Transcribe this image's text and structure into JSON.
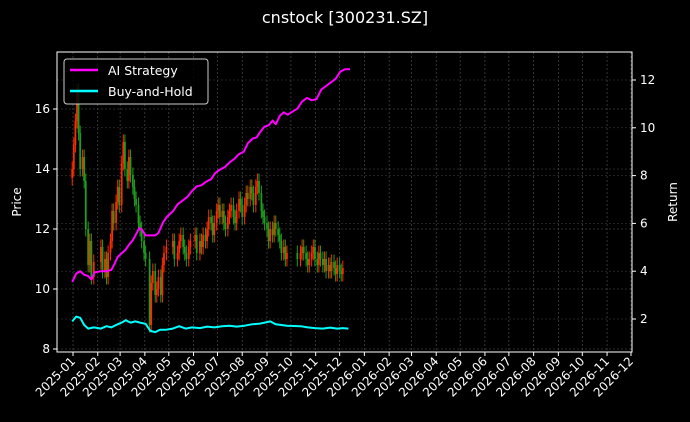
{
  "title": "cnstock [300231.SZ]",
  "chart_data": {
    "type": "line",
    "title": "cnstock [300231.SZ]",
    "xlabel": "",
    "ylabel": "Price",
    "ylabel_right": "Return",
    "grid": true,
    "legend_position": "upper left",
    "background": "#000000",
    "x_tick_labels": [
      "2025-01",
      "2025-02",
      "2025-03",
      "2025-04",
      "2025-05",
      "2025-06",
      "2025-07",
      "2025-08",
      "2025-09",
      "2025-10",
      "2025-11",
      "2025-12",
      "2026-01",
      "2026-02",
      "2026-03",
      "2026-04",
      "2026-05",
      "2026-06",
      "2026-07",
      "2026-08",
      "2026-09",
      "2026-10",
      "2026-11",
      "2026-12"
    ],
    "y_left": {
      "label": "Price",
      "ticks": [
        8,
        10,
        12,
        14,
        16
      ],
      "range": [
        7.9,
        18.0
      ]
    },
    "y_right": {
      "label": "Return",
      "ticks": [
        2,
        4,
        6,
        8,
        10,
        12
      ],
      "range": [
        0.6,
        13.2
      ]
    },
    "price_candles": {
      "name": "Price (candlestick)",
      "up_color": "#ff2a00",
      "down_color": "#1e9e1e",
      "x": [
        "2024-12-31",
        "2025-01-02",
        "2025-01-04",
        "2025-01-06",
        "2025-01-08",
        "2025-01-10",
        "2025-01-13",
        "2025-01-15",
        "2025-01-17",
        "2025-01-20",
        "2025-01-22",
        "2025-01-24",
        "2025-01-27",
        "2025-02-05",
        "2025-02-07",
        "2025-02-10",
        "2025-02-12",
        "2025-02-14",
        "2025-02-17",
        "2025-02-19",
        "2025-02-21",
        "2025-02-24",
        "2025-02-26",
        "2025-02-28",
        "2025-03-03",
        "2025-03-05",
        "2025-03-07",
        "2025-03-10",
        "2025-03-12",
        "2025-03-14",
        "2025-03-17",
        "2025-03-19",
        "2025-03-21",
        "2025-03-24",
        "2025-03-26",
        "2025-03-28",
        "2025-03-31",
        "2025-04-02",
        "2025-04-07",
        "2025-04-09",
        "2025-04-11",
        "2025-04-14",
        "2025-04-16",
        "2025-04-18",
        "2025-04-21",
        "2025-04-23",
        "2025-04-25",
        "2025-04-28",
        "2025-05-06",
        "2025-05-08",
        "2025-05-12",
        "2025-05-14",
        "2025-05-16",
        "2025-05-19",
        "2025-05-21",
        "2025-05-23",
        "2025-05-26",
        "2025-05-28",
        "2025-06-03",
        "2025-06-05",
        "2025-06-09",
        "2025-06-11",
        "2025-06-13",
        "2025-06-16",
        "2025-06-18",
        "2025-06-20",
        "2025-06-23",
        "2025-06-25",
        "2025-06-27",
        "2025-06-30",
        "2025-07-02",
        "2025-07-04",
        "2025-07-07",
        "2025-07-09",
        "2025-07-11",
        "2025-07-14",
        "2025-07-16",
        "2025-07-18",
        "2025-07-21",
        "2025-07-23",
        "2025-07-25",
        "2025-07-28",
        "2025-07-30",
        "2025-08-01",
        "2025-08-04",
        "2025-08-06",
        "2025-08-08",
        "2025-08-11",
        "2025-08-13",
        "2025-08-15",
        "2025-08-18",
        "2025-08-20",
        "2025-08-22",
        "2025-08-25",
        "2025-08-27",
        "2025-08-29",
        "2025-09-01",
        "2025-09-03",
        "2025-09-05",
        "2025-09-08",
        "2025-09-10",
        "2025-09-12",
        "2025-09-15",
        "2025-09-17",
        "2025-09-19",
        "2025-09-22",
        "2025-09-24",
        "2025-09-26",
        "2025-10-09",
        "2025-10-13",
        "2025-10-15",
        "2025-10-17",
        "2025-10-20",
        "2025-10-22",
        "2025-10-24",
        "2025-10-27",
        "2025-10-29",
        "2025-10-31",
        "2025-11-03",
        "2025-11-05",
        "2025-11-07",
        "2025-11-10",
        "2025-11-12",
        "2025-11-14",
        "2025-11-17",
        "2025-11-19",
        "2025-11-21",
        "2025-11-24",
        "2025-11-26",
        "2025-11-28",
        "2025-12-01",
        "2025-12-03",
        "2025-12-05",
        "2025-12-08",
        "2025-12-10"
      ],
      "close": [
        14.0,
        14.8,
        15.6,
        16.6,
        15.2,
        14.0,
        14.4,
        13.6,
        12.0,
        10.8,
        11.6,
        10.4,
        10.9,
        11.4,
        10.6,
        11.0,
        10.4,
        11.2,
        11.6,
        12.6,
        12.2,
        12.9,
        13.4,
        12.8,
        14.2,
        14.9,
        14.0,
        13.6,
        14.4,
        13.8,
        13.4,
        13.0,
        12.8,
        12.2,
        12.0,
        11.6,
        11.2,
        11.0,
        8.8,
        10.2,
        10.6,
        9.8,
        10.0,
        10.4,
        9.8,
        10.8,
        11.2,
        11.4,
        11.6,
        11.0,
        11.2,
        11.6,
        11.8,
        11.4,
        11.2,
        11.0,
        11.4,
        11.6,
        11.8,
        11.2,
        11.6,
        11.4,
        11.8,
        11.6,
        12.0,
        12.4,
        12.2,
        11.8,
        12.2,
        12.6,
        12.8,
        12.4,
        12.6,
        12.2,
        12.0,
        12.4,
        12.6,
        12.8,
        12.4,
        12.2,
        12.6,
        13.0,
        12.8,
        12.4,
        12.8,
        13.2,
        13.0,
        13.4,
        13.2,
        12.8,
        13.4,
        13.6,
        13.2,
        12.6,
        12.4,
        12.2,
        12.0,
        11.6,
        12.0,
        11.8,
        12.2,
        12.0,
        11.8,
        11.6,
        11.2,
        11.4,
        11.0,
        11.2,
        11.0,
        11.2,
        11.4,
        11.2,
        11.0,
        10.8,
        11.0,
        11.2,
        11.4,
        11.0,
        10.8,
        11.2,
        11.0,
        10.8,
        11.0,
        10.6,
        10.8,
        10.6,
        10.9,
        10.7,
        10.5,
        10.8,
        10.6,
        10.5,
        10.7
      ]
    },
    "series": [
      {
        "name": "AI Strategy",
        "axis": "right",
        "color": "#ff00ff",
        "x": [
          "2024-12-31",
          "2025-01-05",
          "2025-01-10",
          "2025-01-15",
          "2025-01-20",
          "2025-01-24",
          "2025-01-28",
          "2025-02-05",
          "2025-02-12",
          "2025-02-18",
          "2025-02-22",
          "2025-02-26",
          "2025-03-03",
          "2025-03-08",
          "2025-03-12",
          "2025-03-17",
          "2025-03-21",
          "2025-03-25",
          "2025-03-28",
          "2025-04-02",
          "2025-04-08",
          "2025-04-14",
          "2025-04-18",
          "2025-04-24",
          "2025-04-28",
          "2025-05-06",
          "2025-05-12",
          "2025-05-18",
          "2025-05-24",
          "2025-05-30",
          "2025-06-05",
          "2025-06-11",
          "2025-06-17",
          "2025-06-23",
          "2025-06-28",
          "2025-07-04",
          "2025-07-10",
          "2025-07-16",
          "2025-07-22",
          "2025-07-28",
          "2025-08-03",
          "2025-08-08",
          "2025-08-14",
          "2025-08-19",
          "2025-08-24",
          "2025-08-29",
          "2025-09-03",
          "2025-09-08",
          "2025-09-12",
          "2025-09-17",
          "2025-09-22",
          "2025-09-27",
          "2025-10-09",
          "2025-10-15",
          "2025-10-21",
          "2025-10-27",
          "2025-11-02",
          "2025-11-08",
          "2025-11-14",
          "2025-11-20",
          "2025-11-26",
          "2025-12-02",
          "2025-12-08",
          "2025-12-14"
        ],
        "values": [
          3.55,
          3.9,
          4.0,
          3.85,
          3.8,
          3.65,
          3.95,
          4.0,
          4.0,
          4.05,
          4.3,
          4.6,
          4.75,
          4.9,
          5.1,
          5.3,
          5.55,
          5.8,
          5.75,
          5.5,
          5.5,
          5.5,
          5.6,
          6.05,
          6.25,
          6.5,
          6.8,
          6.95,
          7.1,
          7.35,
          7.55,
          7.6,
          7.75,
          7.85,
          8.1,
          8.25,
          8.35,
          8.55,
          8.7,
          8.9,
          9.0,
          9.35,
          9.55,
          9.6,
          9.85,
          10.05,
          10.1,
          10.3,
          10.15,
          10.5,
          10.65,
          10.55,
          10.8,
          11.1,
          11.25,
          11.15,
          11.2,
          11.6,
          11.75,
          11.9,
          12.05,
          12.35,
          12.45,
          12.45
        ]
      },
      {
        "name": "Buy-and-Hold",
        "axis": "right",
        "color": "#00ffff",
        "x": [
          "2024-12-31",
          "2025-01-05",
          "2025-01-10",
          "2025-01-15",
          "2025-01-20",
          "2025-01-27",
          "2025-02-05",
          "2025-02-12",
          "2025-02-18",
          "2025-02-24",
          "2025-03-03",
          "2025-03-08",
          "2025-03-14",
          "2025-03-20",
          "2025-03-26",
          "2025-04-02",
          "2025-04-08",
          "2025-04-14",
          "2025-04-20",
          "2025-04-27",
          "2025-05-06",
          "2025-05-14",
          "2025-05-22",
          "2025-05-30",
          "2025-06-09",
          "2025-06-18",
          "2025-06-27",
          "2025-07-07",
          "2025-07-16",
          "2025-07-25",
          "2025-08-04",
          "2025-08-13",
          "2025-08-22",
          "2025-08-29",
          "2025-09-05",
          "2025-09-12",
          "2025-09-19",
          "2025-09-26",
          "2025-10-13",
          "2025-10-22",
          "2025-10-31",
          "2025-11-10",
          "2025-11-19",
          "2025-11-28",
          "2025-12-05",
          "2025-12-12"
        ],
        "values": [
          1.9,
          2.1,
          2.05,
          1.75,
          1.6,
          1.65,
          1.6,
          1.7,
          1.65,
          1.75,
          1.85,
          1.95,
          1.85,
          1.9,
          1.85,
          1.8,
          1.5,
          1.45,
          1.55,
          1.55,
          1.6,
          1.7,
          1.6,
          1.65,
          1.62,
          1.68,
          1.65,
          1.7,
          1.72,
          1.68,
          1.72,
          1.78,
          1.8,
          1.85,
          1.9,
          1.78,
          1.75,
          1.72,
          1.7,
          1.65,
          1.62,
          1.6,
          1.64,
          1.6,
          1.62,
          1.6
        ]
      }
    ]
  },
  "legend": {
    "items": [
      {
        "label": "AI Strategy",
        "color": "#ff00ff"
      },
      {
        "label": "Buy-and-Hold",
        "color": "#00ffff"
      }
    ]
  },
  "axes": {
    "left_label": "Price",
    "right_label": "Return"
  }
}
